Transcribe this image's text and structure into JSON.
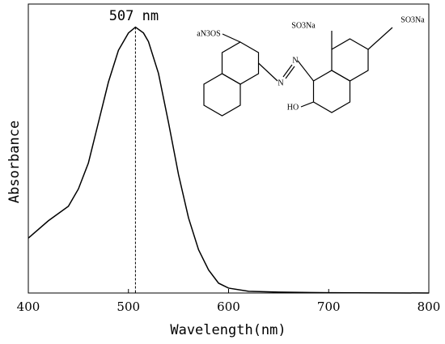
{
  "chart_data": {
    "type": "line",
    "x_label": "Wavelength(nm)",
    "y_label": "Absorbance",
    "x": [
      400,
      420,
      440,
      450,
      460,
      470,
      480,
      490,
      500,
      507,
      515,
      520,
      530,
      540,
      550,
      560,
      570,
      580,
      590,
      600,
      620,
      650,
      700,
      800
    ],
    "values": [
      0.19,
      0.25,
      0.3,
      0.36,
      0.45,
      0.59,
      0.73,
      0.84,
      0.9,
      0.92,
      0.9,
      0.87,
      0.76,
      0.59,
      0.41,
      0.26,
      0.15,
      0.08,
      0.034,
      0.017,
      0.006,
      0.003,
      0.001,
      0.0
    ],
    "color": "#000000",
    "xlim": [
      400,
      800
    ],
    "xticks": [
      400,
      500,
      600,
      700,
      800
    ],
    "ylim": [
      0,
      1
    ],
    "annotation": {
      "text": "507 nm",
      "x": 507
    }
  },
  "structure": {
    "labels": [
      "aN3OS",
      "N",
      "N",
      "SO3Na",
      "SO3Na",
      "HO"
    ]
  }
}
